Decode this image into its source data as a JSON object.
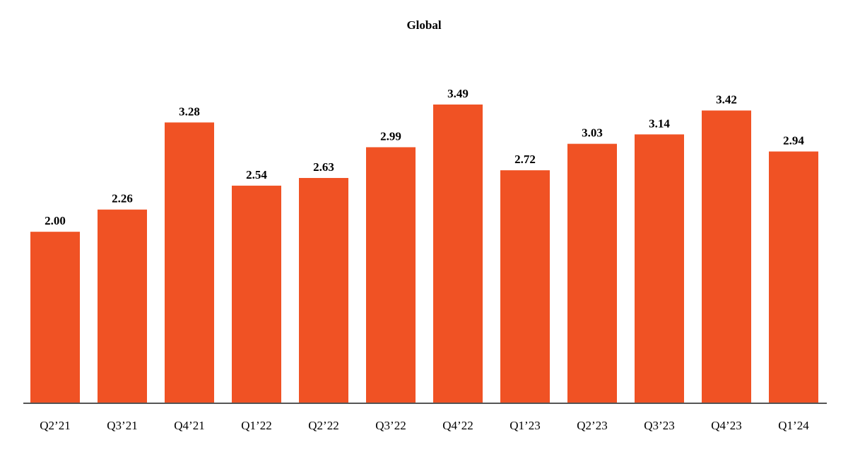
{
  "chart_data": {
    "type": "bar",
    "title": "Global",
    "categories": [
      "Q2’21",
      "Q3’21",
      "Q4’21",
      "Q1’22",
      "Q2’22",
      "Q3’22",
      "Q4’22",
      "Q1’23",
      "Q2’23",
      "Q3’23",
      "Q4’23",
      "Q1’24"
    ],
    "values": [
      2.0,
      2.26,
      3.28,
      2.54,
      2.63,
      2.99,
      3.49,
      2.72,
      3.03,
      3.14,
      3.42,
      2.94
    ],
    "data_labels": [
      "2.00",
      "2.26",
      "3.28",
      "2.54",
      "2.63",
      "2.99",
      "3.49",
      "2.72",
      "3.03",
      "3.14",
      "3.42",
      "2.94"
    ],
    "xlabel": "",
    "ylabel": "",
    "ylim": [
      0,
      3.49
    ],
    "grid": false,
    "bar_color": "#F05224",
    "axis_color": "#555555"
  }
}
